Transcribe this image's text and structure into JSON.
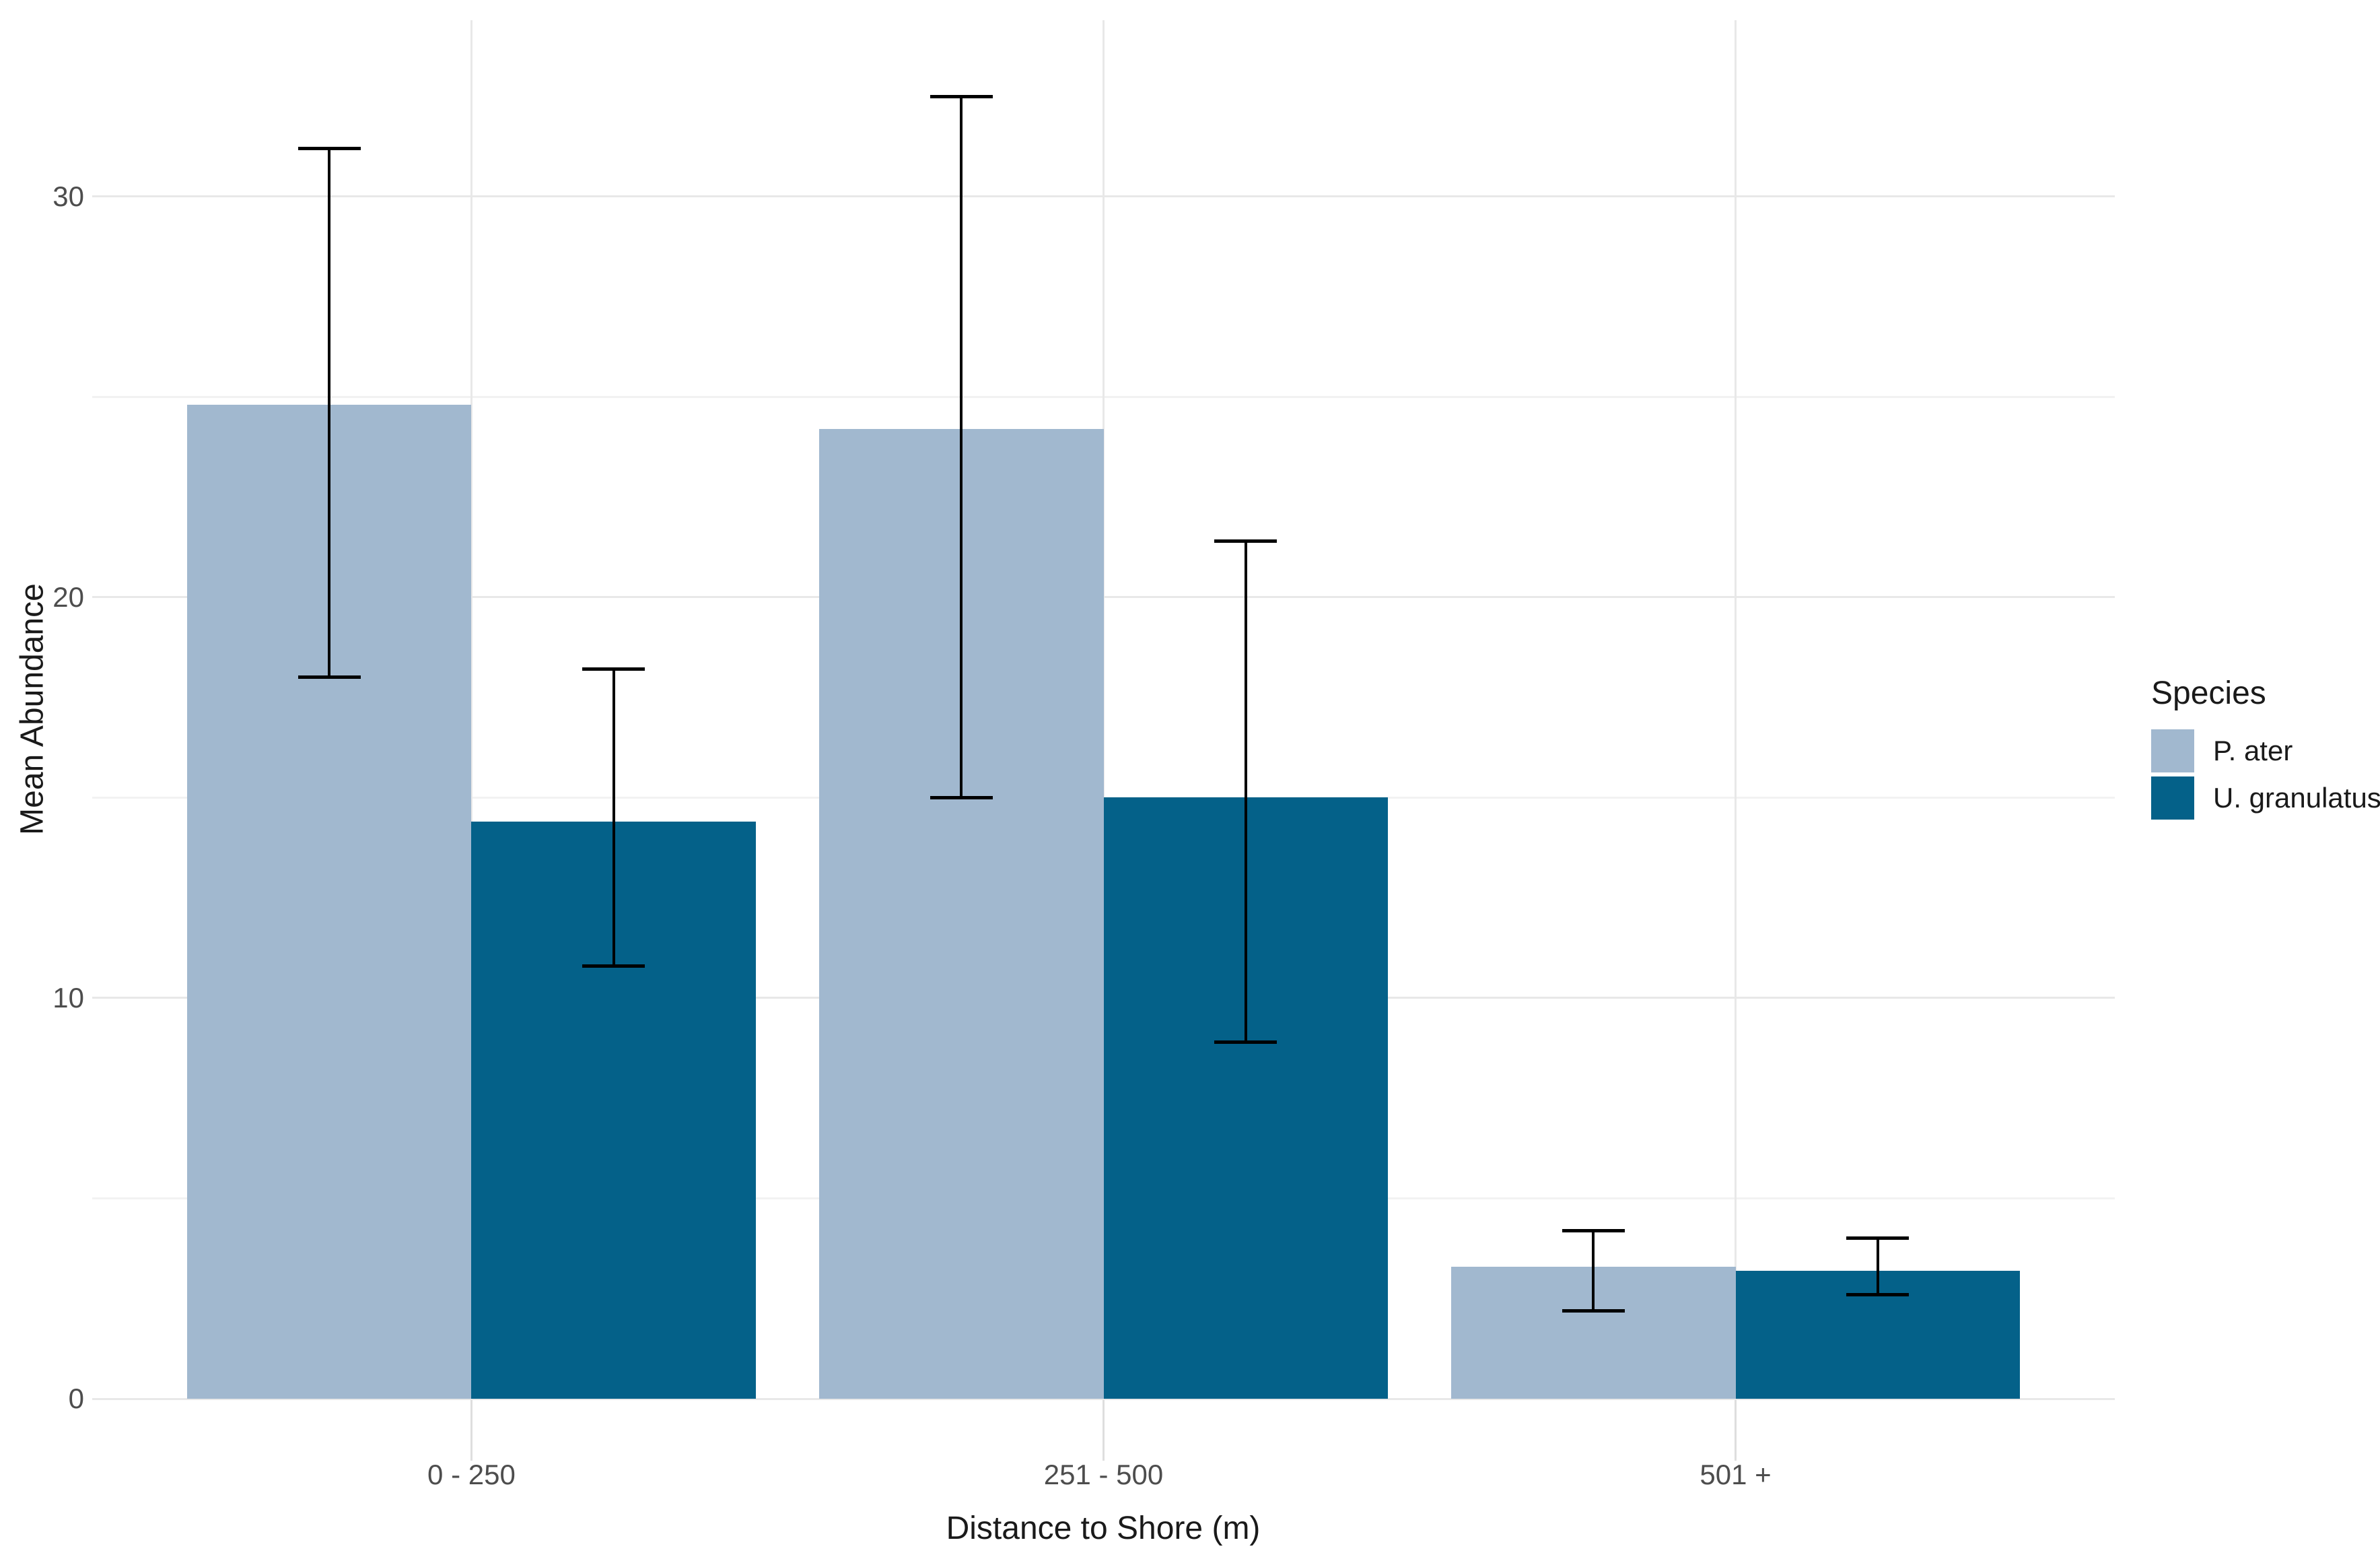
{
  "chart_data": {
    "type": "bar",
    "title": "",
    "categories": [
      "0 - 250",
      "251 - 500",
      "501 +"
    ],
    "xlabel": "Distance to Shore (m)",
    "ylabel": "Mean Abundance",
    "ylim": [
      0,
      34.4
    ],
    "yticks": [
      0,
      10,
      20,
      30
    ],
    "minor_gridlines": [
      5,
      15,
      25
    ],
    "grid": true,
    "legend_title": "Species",
    "legend_position": "right",
    "bar_layout": "dodged",
    "series": [
      {
        "name": "P. ater",
        "color": "#A1B8CF",
        "values": [
          24.8,
          24.2,
          3.3
        ],
        "error_low": [
          18.0,
          15.0,
          2.2
        ],
        "error_high": [
          31.2,
          32.5,
          4.2
        ]
      },
      {
        "name": "U. granulatus",
        "color": "#046189",
        "values": [
          14.4,
          15.0,
          3.2
        ],
        "error_low": [
          10.8,
          8.9,
          2.6
        ],
        "error_high": [
          18.2,
          21.4,
          4.0
        ]
      }
    ]
  },
  "colors": {
    "background": "#ffffff",
    "grid_major": "#e8e8e8",
    "grid_minor": "#f2f2f2",
    "axis_tick": "#dedede",
    "tick_label": "#4d4d4d",
    "title_text": "#1a1a1a",
    "error_bar": "#000000"
  }
}
